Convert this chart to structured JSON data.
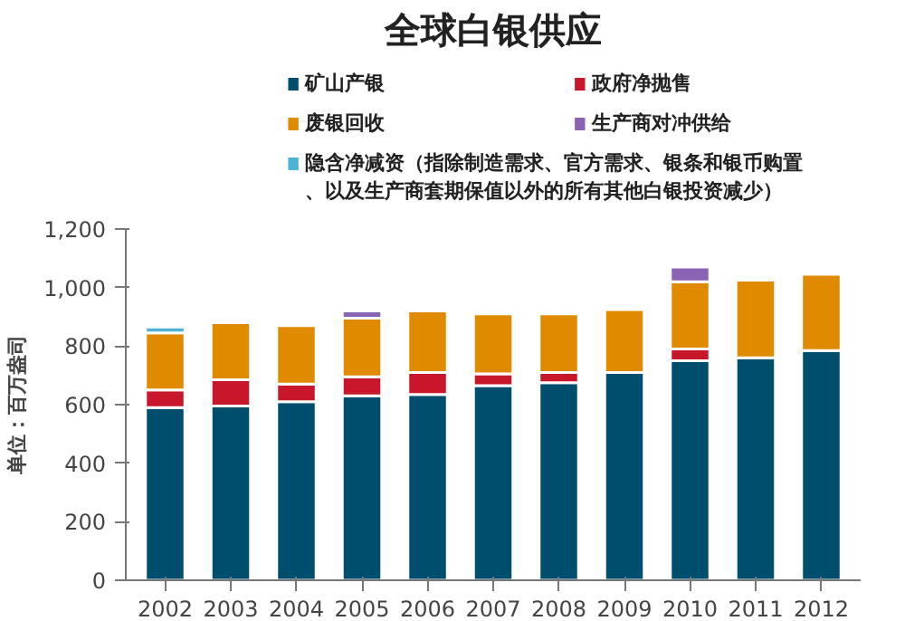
{
  "chart_data": {
    "type": "bar",
    "title": "全球白银供应",
    "ylabel": "单位：百万盎司",
    "stacked": true,
    "categories": [
      "2002",
      "2003",
      "2004",
      "2005",
      "2006",
      "2007",
      "2008",
      "2009",
      "2010",
      "2011",
      "2012"
    ],
    "series": [
      {
        "name": "矿山产银",
        "color": "#004e6e",
        "values": [
          590,
          595,
          610,
          630,
          635,
          665,
          675,
          710,
          750,
          760,
          785
        ]
      },
      {
        "name": "政府净抛售",
        "color": "#c8172a",
        "values": [
          60,
          90,
          60,
          65,
          75,
          40,
          35,
          null,
          40,
          null,
          null
        ]
      },
      {
        "name": "废银回收",
        "color": "#e08a00",
        "values": [
          195,
          195,
          200,
          200,
          210,
          205,
          200,
          215,
          230,
          265,
          260
        ]
      },
      {
        "name": "生产商对冲供给",
        "color": "#8a63b5",
        "values": [
          null,
          null,
          null,
          25,
          null,
          null,
          null,
          null,
          50,
          null,
          null
        ]
      },
      {
        "name": "隐含净减资（指除制造需求、官方需求、银条和银币购置、以及生产商套期保值以外的所有其他白银投资减少）",
        "color": "#4ab3d6",
        "values": [
          20,
          null,
          null,
          null,
          null,
          null,
          null,
          null,
          null,
          null,
          null
        ]
      }
    ],
    "ylim": [
      0,
      1200
    ],
    "yticks": [
      {
        "value": 0,
        "label": "0"
      },
      {
        "value": 200,
        "label": "200"
      },
      {
        "value": 400,
        "label": "400"
      },
      {
        "value": 600,
        "label": "600"
      },
      {
        "value": 800,
        "label": "800"
      },
      {
        "value": 1000,
        "label": "1,000"
      },
      {
        "value": 1200,
        "label": "1,200"
      }
    ],
    "grid": false,
    "legend": "top"
  }
}
